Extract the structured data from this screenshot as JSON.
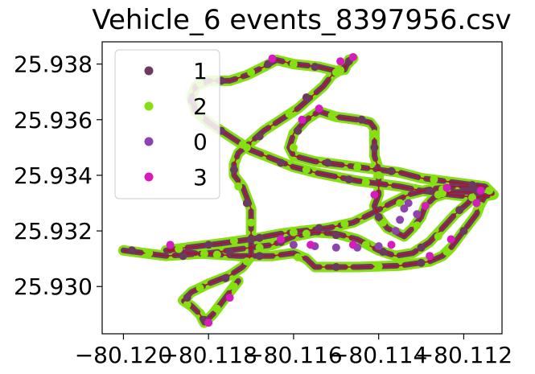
{
  "chart_data": {
    "type": "scatter",
    "title": "Vehicle_6 events_8397956.csv",
    "xlabel": "",
    "ylabel": "",
    "xlim": [
      -80.1205,
      -80.1111
    ],
    "ylim": [
      25.9283,
      25.9388
    ],
    "x_ticks": [
      -80.12,
      -80.118,
      -80.116,
      -80.114,
      -80.112
    ],
    "x_tick_labels": [
      "−80.120",
      "−80.118",
      "−80.116",
      "−80.114",
      "−80.112"
    ],
    "y_ticks": [
      25.93,
      25.932,
      25.934,
      25.936,
      25.938
    ],
    "y_tick_labels": [
      "25.930",
      "25.932",
      "25.934",
      "25.936",
      "25.938"
    ],
    "grid": false,
    "legend_position": "top-left",
    "route_color": "#b0102a",
    "series": [
      {
        "name": "1",
        "color": "#6b3a5e"
      },
      {
        "name": "2",
        "color": "#84e010"
      },
      {
        "name": "0",
        "color": "#8e44ad"
      },
      {
        "name": "3",
        "color": "#d81bbf"
      }
    ],
    "route": [
      [
        -80.12,
        25.9313
      ],
      [
        -80.119,
        25.9311
      ],
      [
        -80.118,
        25.9312
      ],
      [
        -80.117,
        25.9314
      ],
      [
        -80.1165,
        25.9315
      ],
      [
        -80.116,
        25.9318
      ],
      [
        -80.1155,
        25.93195
      ],
      [
        -80.115,
        25.9319
      ],
      [
        -80.1145,
        25.9317
      ],
      [
        -80.114,
        25.9313
      ],
      [
        -80.1136,
        25.9311
      ],
      [
        -80.1132,
        25.9312
      ],
      [
        -80.1128,
        25.9316
      ],
      [
        -80.1125,
        25.9321
      ],
      [
        -80.1122,
        25.9326
      ],
      [
        -80.1119,
        25.933
      ],
      [
        -80.1117,
        25.9334
      ],
      [
        -80.1118,
        25.9336
      ],
      [
        -80.1122,
        25.9336
      ],
      [
        -80.1128,
        25.9335
      ],
      [
        -80.1133,
        25.9333
      ],
      [
        -80.1137,
        25.933
      ],
      [
        -80.1142,
        25.9326
      ],
      [
        -80.1146,
        25.9323
      ],
      [
        -80.1152,
        25.9321
      ],
      [
        -80.1158,
        25.932
      ],
      [
        -80.1163,
        25.9319
      ],
      [
        -80.117,
        25.9317
      ],
      [
        -80.1177,
        25.93155
      ],
      [
        -80.1185,
        25.9314
      ],
      [
        -80.119,
        25.9313
      ],
      [
        -80.1183,
        25.9312
      ],
      [
        -80.1173,
        25.9311
      ],
      [
        -80.1165,
        25.9311
      ],
      [
        -80.116,
        25.9312
      ],
      [
        -80.1157,
        25.931
      ],
      [
        -80.1155,
        25.9307
      ],
      [
        -80.1145,
        25.9307
      ],
      [
        -80.1135,
        25.93075
      ],
      [
        -80.1128,
        25.9309
      ],
      [
        -80.1125,
        25.9311
      ],
      [
        -80.1123,
        25.9314
      ],
      [
        -80.1121,
        25.9318
      ],
      [
        -80.1119,
        25.9322
      ],
      [
        -80.1117,
        25.9326
      ],
      [
        -80.1116,
        25.933
      ],
      [
        -80.1115,
        25.93325
      ],
      [
        -80.1117,
        25.9334
      ],
      [
        -80.1123,
        25.9334
      ],
      [
        -80.1127,
        25.9332
      ],
      [
        -80.1129,
        25.9329
      ],
      [
        -80.113,
        25.9325
      ],
      [
        -80.1132,
        25.9321
      ],
      [
        -80.1134,
        25.9318
      ],
      [
        -80.1138,
        25.9321
      ],
      [
        -80.114,
        25.9325
      ],
      [
        -80.1141,
        25.9329
      ],
      [
        -80.114,
        25.9333
      ],
      [
        -80.114,
        25.9337
      ],
      [
        -80.114,
        25.9342
      ],
      [
        -80.1141,
        25.9347
      ],
      [
        -80.1141,
        25.9352
      ],
      [
        -80.1141,
        25.9357
      ],
      [
        -80.1142,
        25.9359
      ],
      [
        -80.1145,
        25.936
      ],
      [
        -80.115,
        25.9361
      ],
      [
        -80.1154,
        25.9363
      ],
      [
        -80.1157,
        25.936
      ],
      [
        -80.116,
        25.9355
      ],
      [
        -80.1161,
        25.935
      ],
      [
        -80.116,
        25.9347
      ],
      [
        -80.1155,
        25.9345
      ],
      [
        -80.115,
        25.9344
      ],
      [
        -80.1145,
        25.9343
      ],
      [
        -80.114,
        25.9342
      ],
      [
        -80.1135,
        25.9341
      ],
      [
        -80.113,
        25.9339
      ],
      [
        -80.1125,
        25.9338
      ],
      [
        -80.112,
        25.9337
      ],
      [
        -80.1115,
        25.9336
      ],
      [
        -80.1113,
        25.9333
      ],
      [
        -80.1117,
        25.9332
      ],
      [
        -80.1123,
        25.9333
      ],
      [
        -80.113,
        25.93345
      ],
      [
        -80.1135,
        25.9336
      ],
      [
        -80.114,
        25.9337
      ],
      [
        -80.1145,
        25.9338
      ],
      [
        -80.115,
        25.93395
      ],
      [
        -80.1155,
        25.9341
      ],
      [
        -80.116,
        25.9343
      ],
      [
        -80.1165,
        25.9346
      ],
      [
        -80.117,
        25.9349
      ],
      [
        -80.1175,
        25.9354
      ],
      [
        -80.118,
        25.9359
      ],
      [
        -80.1183,
        25.9363
      ],
      [
        -80.1184,
        25.9368
      ],
      [
        -80.1183,
        25.9372
      ],
      [
        -80.118,
        25.9374
      ],
      [
        -80.1175,
        25.9374
      ],
      [
        -80.1171,
        25.9376
      ],
      [
        -80.1167,
        25.9379
      ],
      [
        -80.1164,
        25.93815
      ],
      [
        -80.116,
        25.938
      ],
      [
        -80.1154,
        25.9379
      ],
      [
        -80.115,
        25.93775
      ],
      [
        -80.1148,
        25.9378
      ],
      [
        -80.1147,
        25.93815
      ],
      [
        -80.1146,
        25.9382
      ],
      [
        -80.1148,
        25.9379
      ],
      [
        -80.1151,
        25.9376
      ],
      [
        -80.1153,
        25.9372
      ],
      [
        -80.1156,
        25.9368
      ],
      [
        -80.1159,
        25.9364
      ],
      [
        -80.1163,
        25.936
      ],
      [
        -80.1167,
        25.9356
      ],
      [
        -80.117,
        25.9352
      ],
      [
        -80.1173,
        25.9348
      ],
      [
        -80.1174,
        25.9344
      ],
      [
        -80.1174,
        25.934
      ],
      [
        -80.1172,
        25.9336
      ],
      [
        -80.1171,
        25.9332
      ],
      [
        -80.117,
        25.9328
      ],
      [
        -80.117,
        25.9324
      ],
      [
        -80.117,
        25.9319
      ],
      [
        -80.117,
        25.9315
      ],
      [
        -80.117,
        25.9311
      ],
      [
        -80.1172,
        25.9307
      ],
      [
        -80.1175,
        25.9304
      ],
      [
        -80.118,
        25.9301
      ],
      [
        -80.1184,
        25.9298
      ],
      [
        -80.1186,
        25.9295
      ],
      [
        -80.1184,
        25.9293
      ],
      [
        -80.1182,
        25.929
      ],
      [
        -80.1181,
        25.9287
      ],
      [
        -80.1179,
        25.929
      ],
      [
        -80.1177,
        25.9294
      ],
      [
        -80.1175,
        25.9298
      ],
      [
        -80.1173,
        25.9302
      ]
    ],
    "points": {
      "1": [
        [
          -80.1198,
          25.9313
        ],
        [
          -80.1186,
          25.9311
        ],
        [
          -80.1175,
          25.93125
        ],
        [
          -80.1163,
          25.9316
        ],
        [
          -80.115,
          25.93185
        ],
        [
          -80.1139,
          25.93125
        ],
        [
          -80.113,
          25.9314
        ],
        [
          -80.1121,
          25.93275
        ],
        [
          -80.1117,
          25.93345
        ],
        [
          -80.1128,
          25.93345
        ],
        [
          -80.114,
          25.9325
        ],
        [
          -80.1154,
          25.9321
        ],
        [
          -80.1168,
          25.93175
        ],
        [
          -80.118,
          25.9315
        ],
        [
          -80.1168,
          25.9311
        ],
        [
          -80.115,
          25.9307
        ],
        [
          -80.113,
          25.93085
        ],
        [
          -80.112,
          25.932
        ],
        [
          -80.1141,
          25.935
        ],
        [
          -80.1144,
          25.936
        ],
        [
          -80.1159,
          25.9356
        ],
        [
          -80.1152,
          25.93445
        ],
        [
          -80.1137,
          25.93415
        ],
        [
          -80.1118,
          25.93365
        ],
        [
          -80.1147,
          25.93385
        ],
        [
          -80.1163,
          25.93445
        ],
        [
          -80.1177,
          25.9356
        ],
        [
          -80.1184,
          25.9367
        ],
        [
          -80.1177,
          25.9374
        ],
        [
          -80.1166,
          25.938
        ],
        [
          -80.1155,
          25.9379
        ],
        [
          -80.1147,
          25.9381
        ],
        [
          -80.1157,
          25.9368
        ],
        [
          -80.1168,
          25.9354
        ],
        [
          -80.1174,
          25.9342
        ],
        [
          -80.1171,
          25.933
        ],
        [
          -80.117,
          25.9317
        ],
        [
          -80.1176,
          25.9303
        ],
        [
          -80.1185,
          25.9296
        ],
        [
          -80.1181,
          25.9288
        ]
      ],
      "2": [
        [
          -80.1194,
          25.9312
        ],
        [
          -80.1181,
          25.93118
        ],
        [
          -80.1168,
          25.9314
        ],
        [
          -80.1157,
          25.9319
        ],
        [
          -80.1143,
          25.9315
        ],
        [
          -80.1126,
          25.9318
        ],
        [
          -80.1118,
          25.9332
        ],
        [
          -80.1125,
          25.9335
        ],
        [
          -80.1135,
          25.933
        ],
        [
          -80.1148,
          25.93225
        ],
        [
          -80.116,
          25.93195
        ],
        [
          -80.1174,
          25.93165
        ],
        [
          -80.1187,
          25.93135
        ],
        [
          -80.1178,
          25.93115
        ],
        [
          -80.1159,
          25.93105
        ],
        [
          -80.114,
          25.93072
        ],
        [
          -80.1124,
          25.93125
        ],
        [
          -80.1116,
          25.9329
        ],
        [
          -80.1126,
          25.9333
        ],
        [
          -80.1131,
          25.9322
        ],
        [
          -80.1139,
          25.9323
        ],
        [
          -80.114,
          25.934
        ],
        [
          -80.1141,
          25.9355
        ],
        [
          -80.1151,
          25.93615
        ],
        [
          -80.116,
          25.935
        ],
        [
          -80.1145,
          25.9343
        ],
        [
          -80.1127,
          25.93385
        ],
        [
          -80.1114,
          25.93345
        ],
        [
          -80.1125,
          25.93335
        ],
        [
          -80.1143,
          25.93375
        ],
        [
          -80.1157,
          25.9342
        ],
        [
          -80.1172,
          25.9351
        ],
        [
          -80.1182,
          25.9361
        ],
        [
          -80.1182,
          25.9373
        ],
        [
          -80.117,
          25.9377
        ],
        [
          -80.116,
          25.938
        ],
        [
          -80.1149,
          25.93778
        ],
        [
          -80.115,
          25.9377
        ],
        [
          -80.1161,
          25.9362
        ],
        [
          -80.1171,
          25.935
        ],
        [
          -80.1173,
          25.9336
        ],
        [
          -80.117,
          25.9323
        ],
        [
          -80.1171,
          25.9309
        ],
        [
          -80.1182,
          25.92995
        ],
        [
          -80.1185,
          25.92935
        ],
        [
          -80.1178,
          25.9292
        ],
        [
          -80.1174,
          25.93
        ]
      ],
      "0": [
        [
          -80.116,
          25.9315
        ],
        [
          -80.1155,
          25.93145
        ],
        [
          -80.115,
          25.9314
        ],
        [
          -80.1145,
          25.9314
        ],
        [
          -80.114,
          25.93145
        ],
        [
          -80.1136,
          25.932
        ],
        [
          -80.1135,
          25.9324
        ],
        [
          -80.1134,
          25.9328
        ],
        [
          -80.1133,
          25.933
        ],
        [
          -80.1131,
          25.9326
        ]
      ],
      "3": [
        [
          -80.1189,
          25.9315
        ],
        [
          -80.1175,
          25.9296
        ],
        [
          -80.118,
          25.9287
        ],
        [
          -80.1163,
          25.9317
        ],
        [
          -80.1156,
          25.9315
        ],
        [
          -80.1146,
          25.9315
        ],
        [
          -80.1137,
          25.9315
        ],
        [
          -80.1128,
          25.9311
        ],
        [
          -80.1123,
          25.9317
        ],
        [
          -80.1117,
          25.933
        ],
        [
          -80.1116,
          25.93345
        ],
        [
          -80.1124,
          25.93355
        ],
        [
          -80.1154,
          25.9364
        ],
        [
          -80.1158,
          25.936
        ],
        [
          -80.1165,
          25.9382
        ],
        [
          -80.1149,
          25.9381
        ],
        [
          -80.1146,
          25.93825
        ],
        [
          -80.1141,
          25.9333
        ],
        [
          -80.1129,
          25.9329
        ]
      ]
    }
  }
}
